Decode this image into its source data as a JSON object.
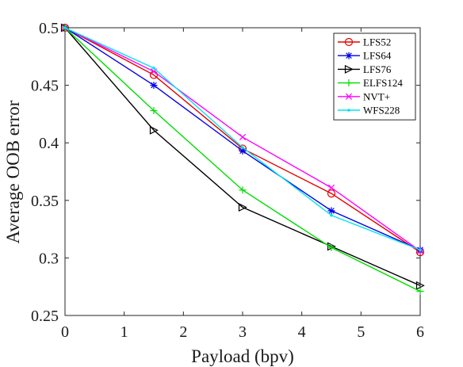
{
  "chart_data": {
    "type": "line",
    "title": "",
    "xlabel": "Payload (bpv)",
    "ylabel": "Average OOB error",
    "xlim": [
      0,
      6
    ],
    "ylim": [
      0.25,
      0.5
    ],
    "x_ticks": [
      0,
      1,
      2,
      3,
      4,
      5,
      6
    ],
    "x_tick_labels": [
      "0",
      "1",
      "2",
      "3",
      "4",
      "5",
      "6"
    ],
    "y_ticks": [
      0.25,
      0.3,
      0.35,
      0.4,
      0.45,
      0.5
    ],
    "y_tick_labels": [
      "0.25",
      "0.3",
      "0.35",
      "0.4",
      "0.45",
      "0.5"
    ],
    "grid": false,
    "legend_position": "top-right",
    "x": [
      0,
      1.5,
      3,
      4.5,
      6
    ],
    "series": [
      {
        "name": "LFS52",
        "color": "#e60000",
        "marker": "circle",
        "values": [
          0.5,
          0.459,
          0.395,
          0.356,
          0.305
        ]
      },
      {
        "name": "LFS64",
        "color": "#0000e6",
        "marker": "asterisk",
        "values": [
          0.5,
          0.45,
          0.393,
          0.341,
          0.307
        ]
      },
      {
        "name": "LFS76",
        "color": "#000000",
        "marker": "triangle-right",
        "values": [
          0.5,
          0.411,
          0.344,
          0.31,
          0.276
        ]
      },
      {
        "name": "ELFS124",
        "color": "#00dd00",
        "marker": "plus",
        "values": [
          0.5,
          0.428,
          0.359,
          0.309,
          0.271
        ]
      },
      {
        "name": "NVT+",
        "color": "#ff00ff",
        "marker": "x",
        "values": [
          0.5,
          0.462,
          0.405,
          0.361,
          0.306
        ]
      },
      {
        "name": "WFS228",
        "color": "#00e5ee",
        "marker": "point",
        "values": [
          0.5,
          0.465,
          0.396,
          0.337,
          0.307
        ]
      }
    ]
  }
}
